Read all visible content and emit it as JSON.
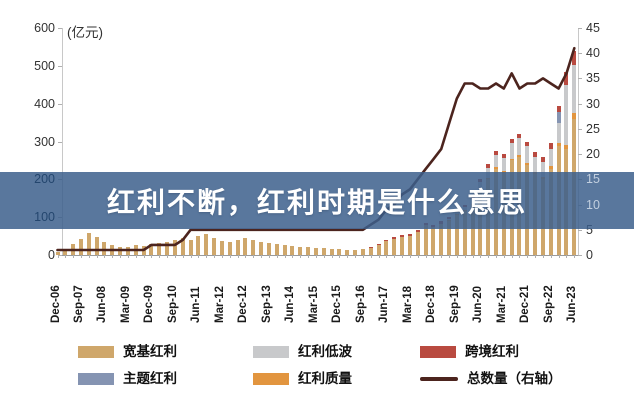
{
  "banner": {
    "text": "红利不断，红利时期是什么意思",
    "bg_color": "#3C5F8C",
    "bg_opacity": 0.85,
    "text_color": "#FFFFFF"
  },
  "chart_data": {
    "type": "bar",
    "subtype": "stacked-bars-with-line-combo",
    "unit_label": "(亿元)",
    "grid": "off",
    "legend_position": "bottom",
    "left_axis": {
      "min": 0,
      "max": 600,
      "step": 100,
      "tick_labels": [
        "0",
        "100",
        "200",
        "300",
        "400",
        "500",
        "600"
      ]
    },
    "right_axis": {
      "min": 0,
      "max": 45,
      "step": 5,
      "tick_labels": [
        "0",
        "5",
        "10",
        "15",
        "20",
        "25",
        "30",
        "35",
        "40",
        "45"
      ]
    },
    "x": [
      "Dec-06",
      "Mar-07",
      "Jun-07",
      "Sep-07",
      "Dec-07",
      "Mar-08",
      "Jun-08",
      "Sep-08",
      "Dec-08",
      "Mar-09",
      "Jun-09",
      "Sep-09",
      "Dec-09",
      "Mar-10",
      "Jun-10",
      "Sep-10",
      "Dec-10",
      "Mar-11",
      "Jun-11",
      "Sep-11",
      "Dec-11",
      "Mar-12",
      "Jun-12",
      "Sep-12",
      "Dec-12",
      "Mar-13",
      "Jun-13",
      "Sep-13",
      "Dec-13",
      "Mar-14",
      "Jun-14",
      "Sep-14",
      "Dec-14",
      "Mar-15",
      "Jun-15",
      "Sep-15",
      "Dec-15",
      "Mar-16",
      "Jun-16",
      "Sep-16",
      "Dec-16",
      "Mar-17",
      "Jun-17",
      "Sep-17",
      "Dec-17",
      "Mar-18",
      "Jun-18",
      "Sep-18",
      "Dec-18",
      "Mar-19",
      "Jun-19",
      "Sep-19",
      "Dec-19",
      "Mar-20",
      "Jun-20",
      "Sep-20",
      "Dec-20",
      "Mar-21",
      "Jun-21",
      "Sep-21",
      "Dec-21",
      "Mar-22",
      "Jun-22",
      "Sep-22",
      "Dec-22",
      "Mar-23",
      "Jun-23"
    ],
    "x_tick_labels": [
      "Dec-06",
      "Sep-07",
      "Jun-08",
      "Mar-09",
      "Dec-09",
      "Sep-10",
      "Jun-11",
      "Mar-12",
      "Dec-12",
      "Sep-13",
      "Jun-14",
      "Mar-15",
      "Dec-15",
      "Sep-16",
      "Jun-17",
      "Mar-18",
      "Dec-18",
      "Sep-19",
      "Jun-20",
      "Mar-21",
      "Dec-21",
      "Sep-22",
      "Jun-23"
    ],
    "series": [
      {
        "name": "宽基红利",
        "type": "bar",
        "axis": "left",
        "color": "#CFA76B",
        "values": [
          8,
          15,
          30,
          43,
          57,
          48,
          35,
          27,
          22,
          22,
          27,
          25,
          29,
          32,
          35,
          40,
          45,
          40,
          50,
          55,
          45,
          38,
          35,
          40,
          45,
          40,
          35,
          32,
          30,
          27,
          25,
          21,
          20,
          19,
          19,
          17,
          16,
          13,
          13,
          15,
          18,
          27,
          36,
          43,
          48,
          50,
          61,
          78,
          73,
          83,
          90,
          105,
          115,
          132,
          168,
          200,
          228,
          218,
          250,
          258,
          238,
          213,
          200,
          228,
          288,
          280,
          360
        ]
      },
      {
        "name": "红利低波",
        "type": "bar",
        "axis": "left",
        "color": "#C8C9CB",
        "values": [
          0,
          0,
          0,
          0,
          0,
          0,
          0,
          0,
          0,
          0,
          0,
          0,
          0,
          0,
          0,
          0,
          0,
          0,
          0,
          0,
          0,
          0,
          0,
          0,
          0,
          0,
          0,
          0,
          0,
          0,
          0,
          0,
          0,
          0,
          0,
          0,
          0,
          0,
          0,
          0,
          0,
          0,
          0,
          0,
          0,
          0,
          0,
          0,
          0,
          0,
          2,
          5,
          8,
          12,
          20,
          26,
          32,
          34,
          40,
          44,
          43,
          41,
          41,
          46,
          53,
          160,
          128
        ]
      },
      {
        "name": "跨境红利",
        "type": "bar",
        "axis": "left",
        "color": "#B94A40",
        "values": [
          0,
          0,
          0,
          0,
          0,
          0,
          0,
          0,
          0,
          0,
          0,
          0,
          0,
          0,
          0,
          0,
          0,
          0,
          0,
          0,
          0,
          0,
          0,
          0,
          0,
          0,
          0,
          0,
          0,
          0,
          0,
          0,
          0,
          0,
          0,
          0,
          0,
          0,
          0,
          0,
          2,
          3,
          4,
          5,
          5,
          5,
          6,
          7,
          7,
          8,
          7,
          7,
          7,
          8,
          8,
          10,
          10,
          10,
          12,
          12,
          12,
          12,
          12,
          14,
          16,
          35,
          37
        ]
      },
      {
        "name": "主题红利",
        "type": "bar",
        "axis": "left",
        "color": "#8594B2",
        "values": [
          0,
          0,
          0,
          0,
          0,
          0,
          0,
          0,
          0,
          0,
          0,
          0,
          0,
          0,
          0,
          0,
          0,
          0,
          0,
          0,
          0,
          0,
          0,
          0,
          0,
          0,
          0,
          0,
          0,
          0,
          0,
          0,
          0,
          0,
          0,
          0,
          0,
          0,
          0,
          0,
          0,
          0,
          0,
          0,
          0,
          0,
          0,
          0,
          0,
          0,
          0,
          0,
          0,
          0,
          0,
          0,
          0,
          0,
          0,
          0,
          0,
          0,
          0,
          0,
          30,
          0,
          0
        ]
      },
      {
        "name": "红利质量",
        "type": "bar",
        "axis": "left",
        "color": "#E2953F",
        "values": [
          0,
          0,
          0,
          0,
          0,
          0,
          0,
          0,
          0,
          0,
          0,
          0,
          0,
          0,
          0,
          0,
          0,
          0,
          0,
          0,
          0,
          0,
          0,
          0,
          0,
          0,
          0,
          0,
          0,
          0,
          0,
          0,
          0,
          0,
          0,
          0,
          0,
          0,
          0,
          0,
          0,
          0,
          0,
          0,
          0,
          0,
          0,
          0,
          0,
          0,
          2,
          3,
          3,
          3,
          4,
          4,
          5,
          5,
          5,
          6,
          6,
          6,
          6,
          7,
          7,
          10,
          15
        ]
      },
      {
        "name": "总数量（右轴）",
        "type": "line",
        "axis": "right",
        "color": "#4C241E",
        "values": [
          1,
          1,
          1,
          1,
          1,
          1,
          1,
          1,
          1,
          1,
          1,
          1,
          2,
          2,
          2,
          2,
          3,
          5,
          5,
          5,
          5,
          5,
          5,
          5,
          5,
          5,
          5,
          5,
          5,
          5,
          5,
          5,
          5,
          5,
          5,
          5,
          5,
          5,
          5,
          5,
          6,
          7,
          9,
          10,
          12,
          13,
          15,
          17,
          19,
          21,
          26,
          31,
          34,
          34,
          33,
          33,
          34,
          33,
          36,
          33,
          34,
          34,
          35,
          34,
          33,
          36,
          41
        ]
      }
    ],
    "stack_order": [
      0,
      4,
      1,
      3,
      2
    ],
    "legend": [
      "宽基红利",
      "红利低波",
      "跨境红利",
      "主题红利",
      "红利质量",
      "总数量（右轴）"
    ]
  },
  "colors": {
    "axis_text": "#333333",
    "x_label_text": "#1a1a1a",
    "axis_line": "#c8c8c8",
    "label_on_banner_left": "#24466E",
    "label_on_banner_right": "#C2CFDF"
  }
}
